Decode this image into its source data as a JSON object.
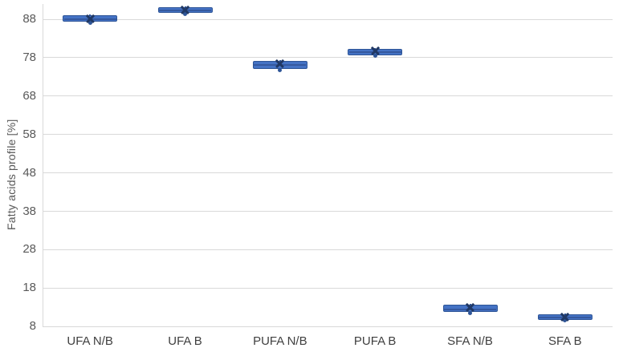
{
  "chart_data": {
    "type": "boxplot",
    "title": "",
    "xlabel": "",
    "ylabel": "Fatty acids profile [%]",
    "y_ticks": [
      8,
      18,
      28,
      38,
      48,
      58,
      68,
      78,
      88
    ],
    "ylim": [
      8,
      93
    ],
    "grid": true,
    "legend": false,
    "categories": [
      "UFA N/B",
      "UFA B",
      "PUFA N/B",
      "PUFA B",
      "SFA N/B",
      "SFA B"
    ],
    "series": [
      {
        "name": "UFA N/B",
        "whisker_low": 87.0,
        "q1": 87.3,
        "median": 88.0,
        "q3": 89.0,
        "whisker_high": 89.3,
        "mean": 88.2,
        "outliers": [
          87.1
        ]
      },
      {
        "name": "UFA B",
        "whisker_low": 89.4,
        "q1": 89.6,
        "median": 90.3,
        "q3": 91.2,
        "whisker_high": 91.4,
        "mean": 90.4,
        "outliers": [
          89.4
        ]
      },
      {
        "name": "PUFA N/B",
        "whisker_low": 74.7,
        "q1": 75.0,
        "median": 76.0,
        "q3": 77.2,
        "whisker_high": 77.4,
        "mean": 76.4,
        "outliers": [
          74.8
        ]
      },
      {
        "name": "PUFA B",
        "whisker_low": 78.3,
        "q1": 78.6,
        "median": 79.4,
        "q3": 80.3,
        "whisker_high": 80.5,
        "mean": 79.8,
        "outliers": [
          78.4
        ]
      },
      {
        "name": "SFA N/B",
        "whisker_low": 11.4,
        "q1": 11.7,
        "median": 12.5,
        "q3": 13.6,
        "whisker_high": 13.8,
        "mean": 13.0,
        "outliers": [
          11.5
        ]
      },
      {
        "name": "SFA B",
        "whisker_low": 9.5,
        "q1": 9.8,
        "median": 10.4,
        "q3": 11.2,
        "whisker_high": 11.4,
        "mean": 10.5,
        "outliers": [
          9.6
        ]
      }
    ]
  },
  "colors": {
    "box_fill": "#4472c4",
    "box_border": "#2e5597",
    "mean_marker": "#203864",
    "gridline": "#d9d9d9",
    "axis_text": "#595959"
  }
}
